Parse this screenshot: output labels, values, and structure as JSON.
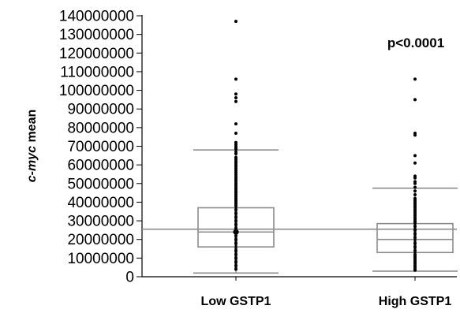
{
  "chart_data": {
    "type": "box",
    "title": "",
    "ylabel_italic": "c-myc",
    "ylabel_rest": " mean",
    "xlabel": "",
    "ylim": [
      0,
      140000000
    ],
    "yticks": [
      0,
      10000000,
      20000000,
      30000000,
      40000000,
      50000000,
      60000000,
      70000000,
      80000000,
      90000000,
      100000000,
      110000000,
      120000000,
      130000000,
      140000000
    ],
    "ytick_labels": [
      "0",
      "10000000",
      "20000000",
      "30000000",
      "40000000",
      "50000000",
      "60000000",
      "70000000",
      "80000000",
      "90000000",
      "100000000",
      "110000000",
      "120000000",
      "130000000",
      "140000000"
    ],
    "categories": [
      "Low GSTP1",
      "High GSTP1"
    ],
    "boxes": [
      {
        "whisker_low": 2000000,
        "q1": 16000000,
        "median": 24000000,
        "q3": 37000000,
        "whisker_high": 68000000,
        "mean": 24000000
      },
      {
        "whisker_low": 3000000,
        "q1": 13000000,
        "median": 20000000,
        "q3": 28500000,
        "whisker_high": 47500000
      }
    ],
    "grand_mean": 25500000,
    "outliers": [
      [
        137000000,
        106000000,
        98000000,
        96000000,
        94000000,
        82000000,
        77000000,
        72000000,
        71000000,
        70000000,
        69000000,
        68500000,
        67000000,
        66000000,
        64000000,
        63000000,
        62000000,
        61000000,
        60000000,
        59000000,
        58000000,
        57000000,
        56000000,
        55000000,
        54000000,
        53000000,
        52000000,
        51000000,
        50000000,
        49000000,
        48000000,
        47000000,
        46000000,
        45000000,
        44000000,
        43000000,
        42000000,
        41000000,
        40000000,
        39000000,
        38000000,
        36000000,
        34000000,
        32000000,
        30000000,
        28000000,
        26000000,
        22000000,
        20000000,
        18000000,
        14000000,
        12000000,
        10000000,
        8000000,
        6000000,
        4000000
      ],
      [
        106000000,
        95000000,
        77000000,
        76000000,
        65000000,
        61000000,
        54000000,
        53000000,
        51000000,
        50000000,
        48000000,
        46000000,
        44000000,
        42000000,
        41000000,
        40000000,
        39000000,
        38000000,
        37000000,
        36000000,
        35000000,
        34000000,
        33000000,
        32000000,
        31000000,
        30000000,
        29000000,
        27000000,
        25000000,
        23000000,
        21000000,
        18000000,
        16000000,
        14000000,
        12000000,
        11000000,
        10000000,
        9000000,
        8000000,
        7000000,
        6000000,
        5000000,
        4000000,
        3500000
      ]
    ],
    "annotation": "p<0.0001",
    "grid": false,
    "legend": "none",
    "colors": {
      "box": "#8c8c8c",
      "points": "#000000",
      "axis": "#000000"
    }
  }
}
